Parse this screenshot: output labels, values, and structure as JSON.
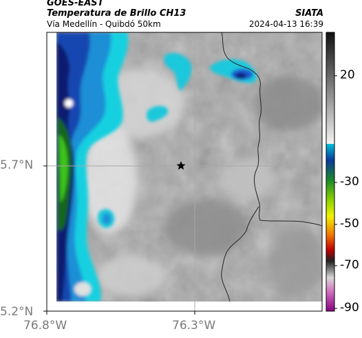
{
  "header": {
    "satellite": "GOES-EAST",
    "product": "Temperatura de Brillo CH13",
    "location": "Vía Medellín - Quibdó 50km",
    "organization": "SIATA",
    "timestamp": "2024-04-13 16:39"
  },
  "map": {
    "lat_ticks": [
      "5.7°N",
      "5.2°N"
    ],
    "lon_ticks": [
      "76.8°W",
      "76.3°W"
    ],
    "marker": "star-marker"
  },
  "colorbar": {
    "ticks": [
      "20",
      "-30",
      "-50",
      "-70",
      "-90"
    ]
  },
  "colors": {
    "frame": "#000000",
    "grid": "#b0b0b0",
    "border_line": "#222222"
  }
}
